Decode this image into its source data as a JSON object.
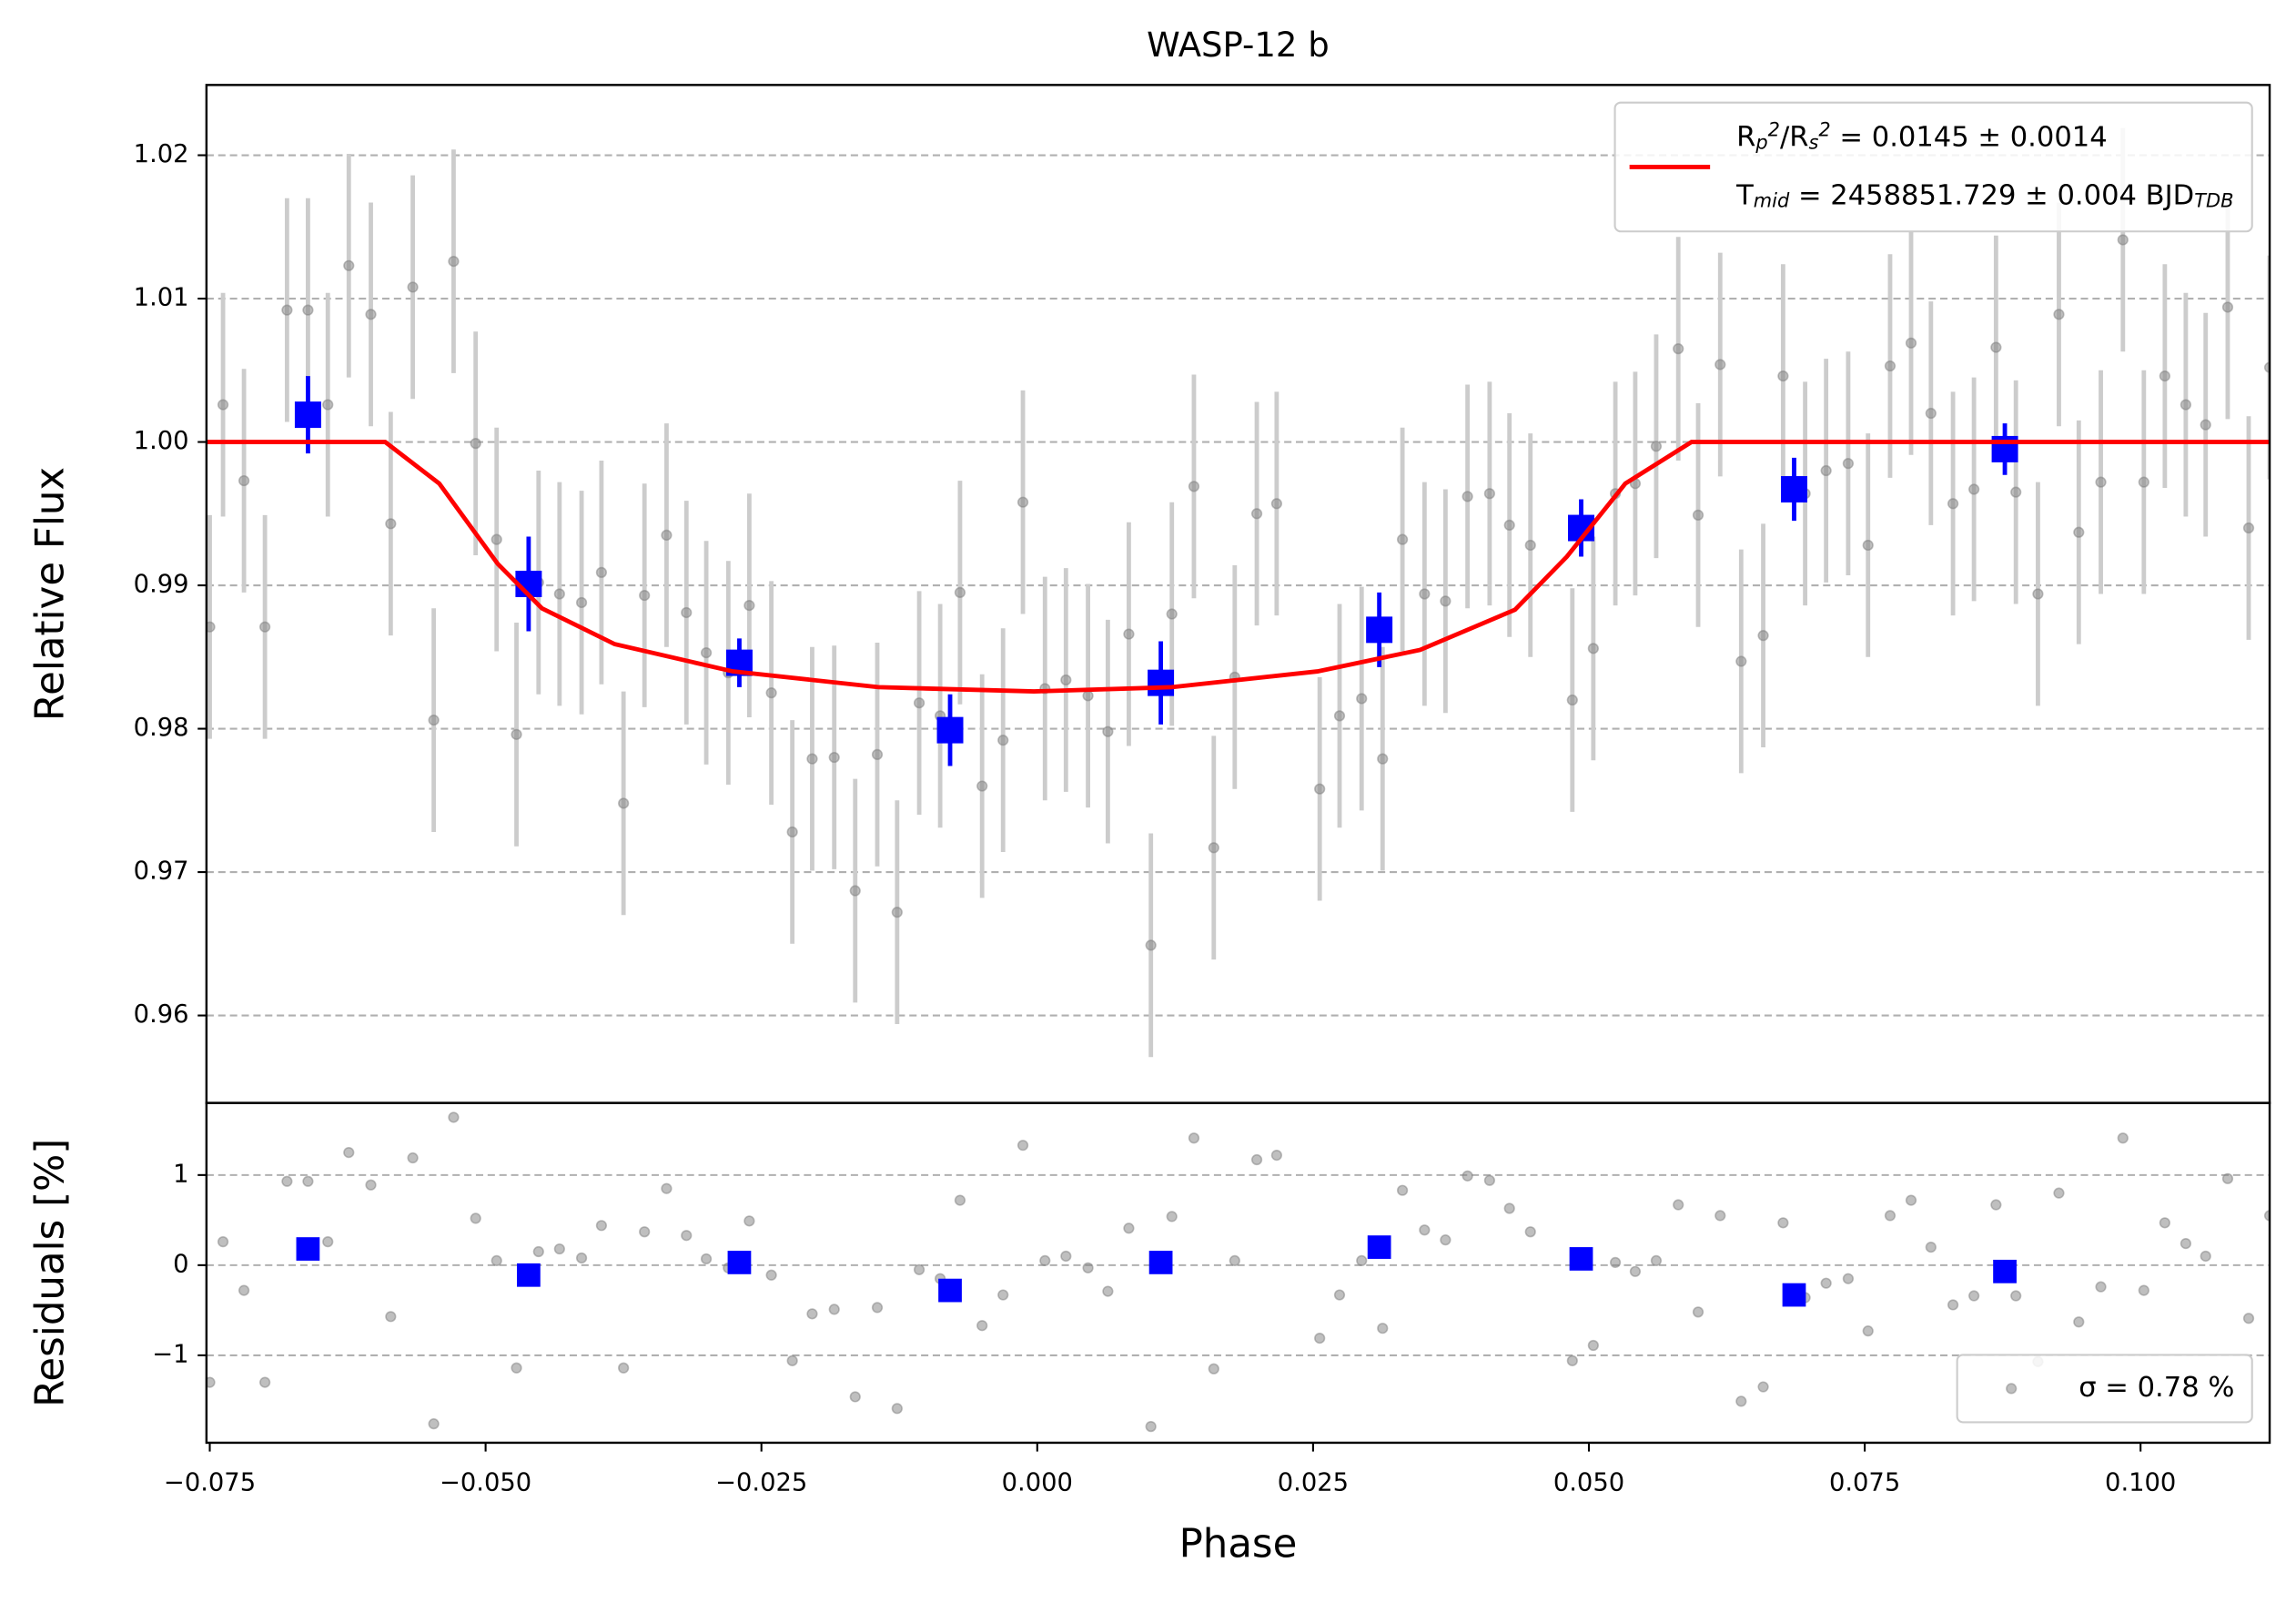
{
  "chart_data": [
    {
      "type": "scatter",
      "title": "WASP-12 b",
      "ylabel": "Relative Flux",
      "xlim": [
        -0.0753,
        0.1117
      ],
      "ylim": [
        0.9539,
        1.0249
      ],
      "yticks": [
        0.96,
        0.97,
        0.98,
        0.99,
        {
          "value": 1.0,
          "label": "1.00"
        },
        1.01,
        1.02
      ],
      "grid": true,
      "legend": "upper right",
      "series": [
        {
          "type": "errorbar",
          "color": "#808080",
          "ecolor": "#cccccc",
          "alpha": 0.5,
          "marker": "circle",
          "error": 0.0078,
          "x": [
            -0.075,
            -0.0738,
            -0.0719,
            -0.07,
            -0.068,
            -0.0661,
            -0.0643,
            -0.0624,
            -0.0604,
            -0.0586,
            -0.0566,
            -0.0547,
            -0.0529,
            -0.0509,
            -0.049,
            -0.0472,
            -0.0452,
            -0.0433,
            -0.0413,
            -0.0395,
            -0.0375,
            -0.0356,
            -0.0336,
            -0.0318,
            -0.03,
            -0.028,
            -0.0261,
            -0.0241,
            -0.0222,
            -0.0204,
            -0.0184,
            -0.0165,
            -0.0145,
            -0.0127,
            -0.0107,
            -0.0088,
            -0.007,
            -0.005,
            -0.0031,
            -0.0013,
            0.0007,
            0.0026,
            0.0046,
            0.0064,
            0.0083,
            0.0103,
            0.0122,
            0.0142,
            0.016,
            0.0179,
            0.0199,
            0.0217,
            0.0256,
            0.0274,
            0.0294,
            0.0313,
            0.0331,
            0.0351,
            0.037,
            0.039,
            0.041,
            0.0428,
            0.0447,
            0.0485,
            0.0504,
            0.0524,
            0.0542,
            0.0561,
            0.0581,
            0.0599,
            0.0619,
            0.0638,
            0.0658,
            0.0676,
            0.0696,
            0.0715,
            0.0735,
            0.0753,
            0.0773,
            0.0792,
            0.081,
            0.083,
            0.0849,
            0.0869,
            0.0887,
            0.0907,
            0.0926,
            0.0944,
            0.0964,
            0.0984,
            0.1003,
            0.1022,
            0.1041,
            0.1059,
            0.1079,
            0.1098,
            0.1117
          ],
          "values": [
            0.9871,
            1.0026,
            0.9973,
            0.9871,
            1.0092,
            1.0092,
            1.0026,
            1.0123,
            1.0089,
            0.9943,
            1.0108,
            0.9806,
            1.0126,
            0.9999,
            0.9932,
            0.9796,
            0.9902,
            0.9894,
            0.9888,
            0.9909,
            0.9748,
            0.9893,
            0.9935,
            0.9881,
            0.9853,
            0.9839,
            0.9886,
            0.9825,
            0.9728,
            0.9779,
            0.978,
            0.9687,
            0.9782,
            0.9672,
            0.9818,
            0.9809,
            0.9895,
            0.976,
            0.9792,
            0.9958,
            0.9828,
            0.9834,
            0.9823,
            0.9798,
            0.9866,
            0.9649,
            0.988,
            0.9969,
            0.9717,
            0.9836,
            0.995,
            0.9957,
            0.9758,
            0.9809,
            0.9821,
            0.9779,
            0.9932,
            0.9894,
            0.9889,
            0.9962,
            0.9964,
            0.9942,
            0.9928,
            0.982,
            0.9856,
            0.9964,
            0.9971,
            0.9997,
            1.0065,
            0.9949,
            1.0054,
            0.9847,
            0.9865,
            1.0046,
            0.9964,
            0.998,
            0.9985,
            0.9928,
            1.0053,
            1.0069,
            1.002,
            0.9957,
            0.9967,
            1.0066,
            0.9965,
            0.9894,
            1.0089,
            0.9937,
            0.9972,
            1.0141,
            0.9972,
            1.0046,
            1.0026,
            1.0012,
            1.0094,
            0.994,
            1.0052
          ]
        },
        {
          "type": "errorbar",
          "color": "#0000ff",
          "marker": "square",
          "x": [
            -0.0661,
            -0.0461,
            -0.027,
            -0.0079,
            0.0112,
            0.031,
            0.0493,
            0.0686,
            0.0877
          ],
          "values": [
            1.0019,
            0.9901,
            0.9846,
            0.9799,
            0.9832,
            0.9869,
            0.994,
            0.9967,
            0.9995
          ],
          "errors": [
            0.0027,
            0.0033,
            0.0017,
            0.0025,
            0.0029,
            0.0026,
            0.002,
            0.0022,
            0.0018
          ]
        },
        {
          "type": "line",
          "color": "#ff0000",
          "name": "R_p^2/R_s^2 = 0.0145 ± 0.0014\nT_{mid} = 2458851.729 ± 0.004 BJD_{TDB}",
          "x": [
            -0.0753,
            -0.0591,
            -0.0542,
            -0.0489,
            -0.0449,
            -0.0383,
            -0.0276,
            -0.0144,
            -0.0003,
            0.0122,
            0.0254,
            0.0347,
            0.0433,
            0.048,
            0.0533,
            0.0593,
            0.1117
          ],
          "values": [
            1.0,
            1.0,
            0.9971,
            0.9915,
            0.9884,
            0.9859,
            0.984,
            0.9829,
            0.9826,
            0.9829,
            0.984,
            0.9855,
            0.9883,
            0.992,
            0.9971,
            1.0,
            1.0
          ]
        }
      ]
    },
    {
      "type": "scatter",
      "ylabel": "Residuals [%]",
      "xlabel": "Phase",
      "xlim": [
        -0.0753,
        0.1117
      ],
      "ylim": [
        -1.97,
        1.8
      ],
      "xticks": [
        {
          "value": -0.075,
          "label": "−0.075"
        },
        {
          "value": -0.05,
          "label": "−0.050"
        },
        {
          "value": -0.025,
          "label": "−0.025"
        },
        {
          "value": 0,
          "label": "0.000"
        },
        {
          "value": 0.025,
          "label": "0.025"
        },
        {
          "value": 0.05,
          "label": "0.050"
        },
        {
          "value": 0.075,
          "label": "0.075"
        },
        {
          "value": 0.1,
          "label": "0.100"
        }
      ],
      "yticks": [
        {
          "value": -1,
          "label": "−1"
        },
        0,
        1
      ],
      "grid": true,
      "legend": "lower right",
      "series": [
        {
          "type": "scatter",
          "name": "σ = 0.78 %",
          "color": "#808080",
          "alpha": 0.5,
          "marker": "circle",
          "x": [
            -0.075,
            -0.0738,
            -0.0719,
            -0.07,
            -0.068,
            -0.0661,
            -0.0643,
            -0.0624,
            -0.0604,
            -0.0586,
            -0.0566,
            -0.0547,
            -0.0529,
            -0.0509,
            -0.049,
            -0.0472,
            -0.0452,
            -0.0433,
            -0.0413,
            -0.0395,
            -0.0375,
            -0.0356,
            -0.0336,
            -0.0318,
            -0.03,
            -0.028,
            -0.0261,
            -0.0241,
            -0.0222,
            -0.0204,
            -0.0184,
            -0.0165,
            -0.0145,
            -0.0127,
            -0.0107,
            -0.0088,
            -0.007,
            -0.005,
            -0.0031,
            -0.0013,
            0.0007,
            0.0026,
            0.0046,
            0.0064,
            0.0083,
            0.0103,
            0.0122,
            0.0142,
            0.016,
            0.0179,
            0.0199,
            0.0217,
            0.0256,
            0.0274,
            0.0294,
            0.0313,
            0.0331,
            0.0351,
            0.037,
            0.039,
            0.041,
            0.0428,
            0.0447,
            0.0485,
            0.0504,
            0.0524,
            0.0542,
            0.0561,
            0.0581,
            0.0599,
            0.0619,
            0.0638,
            0.0658,
            0.0676,
            0.0696,
            0.0715,
            0.0735,
            0.0753,
            0.0773,
            0.0792,
            0.081,
            0.083,
            0.0849,
            0.0869,
            0.0887,
            0.0907,
            0.0926,
            0.0944,
            0.0964,
            0.0984,
            0.1003,
            0.1022,
            0.1041,
            0.1059,
            0.1079,
            0.1098,
            0.1117
          ],
          "values": [
            -1.3,
            0.26,
            -0.28,
            -1.3,
            0.93,
            0.93,
            0.26,
            1.25,
            0.89,
            -0.57,
            1.19,
            -1.76,
            1.64,
            0.52,
            0.05,
            -1.14,
            0.15,
            0.18,
            0.08,
            0.44,
            -1.14,
            0.37,
            0.85,
            0.33,
            0.07,
            -0.03,
            0.49,
            -0.11,
            -1.06,
            -0.54,
            -0.49,
            -1.46,
            -0.47,
            -1.59,
            -0.05,
            -0.15,
            0.72,
            -0.67,
            -0.33,
            1.33,
            0.05,
            0.1,
            -0.03,
            -0.29,
            0.41,
            -1.79,
            0.54,
            1.41,
            -1.15,
            0.05,
            1.17,
            1.22,
            -0.81,
            -0.33,
            0.05,
            -0.7,
            0.83,
            0.39,
            0.28,
            0.99,
            0.94,
            0.63,
            0.37,
            -1.06,
            -0.89,
            0.03,
            -0.07,
            0.05,
            0.67,
            -0.52,
            0.55,
            -1.51,
            -1.35,
            0.47,
            -0.36,
            -0.2,
            -0.15,
            -0.73,
            0.55,
            0.72,
            0.2,
            -0.44,
            -0.34,
            0.67,
            -0.34,
            -1.07,
            0.8,
            -0.63,
            -0.24,
            1.41,
            -0.28,
            0.47,
            0.24,
            0.1,
            0.96,
            -0.59,
            0.55
          ]
        },
        {
          "type": "scatter",
          "color": "#0000ff",
          "marker": "square",
          "x": [
            -0.0661,
            -0.0461,
            -0.027,
            -0.0079,
            0.0112,
            0.031,
            0.0493,
            0.0686,
            0.0877
          ],
          "values": [
            0.18,
            -0.11,
            0.03,
            -0.28,
            0.03,
            0.2,
            0.07,
            -0.33,
            -0.07
          ]
        }
      ]
    }
  ]
}
